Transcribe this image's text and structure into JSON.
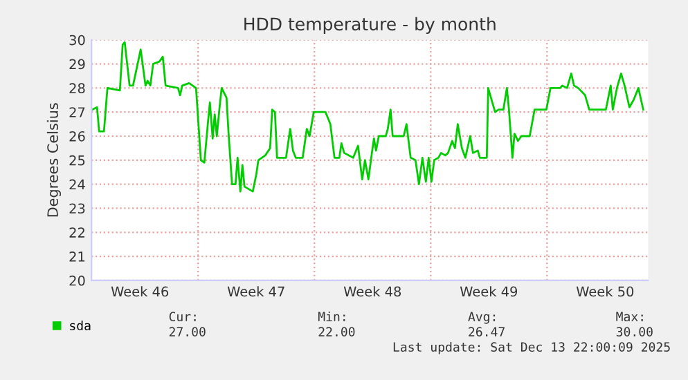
{
  "chart_data": {
    "type": "line",
    "title": "HDD temperature - by month",
    "ylabel": "Degrees Celsius",
    "xlim": [
      "2025-11-10T14:00",
      "2025-12-14T02:00"
    ],
    "ylim": [
      20,
      30
    ],
    "yticks": [
      20,
      21,
      22,
      23,
      24,
      25,
      26,
      27,
      28,
      29,
      30
    ],
    "xticks": [
      {
        "value": "2025-11-13T12:00",
        "label": "Week 46"
      },
      {
        "value": "2025-11-17T00:00",
        "label": null
      },
      {
        "value": "2025-11-20T12:00",
        "label": "Week 47"
      },
      {
        "value": "2025-11-24T00:00",
        "label": null
      },
      {
        "value": "2025-11-27T12:00",
        "label": "Week 48"
      },
      {
        "value": "2025-12-01T00:00",
        "label": null
      },
      {
        "value": "2025-12-04T12:00",
        "label": "Week 49"
      },
      {
        "value": "2025-12-08T00:00",
        "label": null
      },
      {
        "value": "2025-12-11T12:00",
        "label": "Week 50"
      }
    ],
    "grid": true,
    "legend": "bottom left",
    "marker": "none",
    "line_style": "solid",
    "series": [
      {
        "name": "sda",
        "color": "#00cc00",
        "x": [
          "2025-11-10T15:00",
          "2025-11-10T22:00",
          "2025-11-11T01:00",
          "2025-11-11T08:00",
          "2025-11-11T13:00",
          "2025-11-12T07:00",
          "2025-11-12T11:00",
          "2025-11-12T14:00",
          "2025-11-12T21:00",
          "2025-11-13T02:00",
          "2025-11-13T13:00",
          "2025-11-13T20:00",
          "2025-11-13T23:00",
          "2025-11-14T03:00",
          "2025-11-14T07:00",
          "2025-11-14T16:00",
          "2025-11-14T21:00",
          "2025-11-15T01:00",
          "2025-11-15T19:00",
          "2025-11-15T22:00",
          "2025-11-16T01:00",
          "2025-11-16T11:00",
          "2025-11-16T21:00",
          "2025-11-17T04:00",
          "2025-11-17T09:00",
          "2025-11-17T14:00",
          "2025-11-17T17:00",
          "2025-11-17T21:00",
          "2025-11-18T00:00",
          "2025-11-18T03:00",
          "2025-11-18T07:00",
          "2025-11-18T10:00",
          "2025-11-18T17:00",
          "2025-11-18T20:00",
          "2025-11-19T01:00",
          "2025-11-19T06:00",
          "2025-11-19T09:00",
          "2025-11-19T13:00",
          "2025-11-19T16:00",
          "2025-11-19T19:00",
          "2025-11-20T07:00",
          "2025-11-20T12:00",
          "2025-11-20T15:00",
          "2025-11-21T01:00",
          "2025-11-21T08:00",
          "2025-11-21T11:00",
          "2025-11-21T15:00",
          "2025-11-21T18:00",
          "2025-11-22T07:00",
          "2025-11-22T13:00",
          "2025-11-22T17:00",
          "2025-11-22T21:00",
          "2025-11-23T07:00",
          "2025-11-23T13:00",
          "2025-11-23T17:00",
          "2025-11-23T23:00",
          "2025-11-24T16:00",
          "2025-11-24T23:00",
          "2025-11-25T05:00",
          "2025-11-25T12:00",
          "2025-11-25T15:00",
          "2025-11-25T19:00",
          "2025-11-26T08:00",
          "2025-11-26T15:00",
          "2025-11-26T18:00",
          "2025-11-26T21:00",
          "2025-11-27T01:00",
          "2025-11-27T06:00",
          "2025-11-27T11:00",
          "2025-11-27T14:00",
          "2025-11-27T17:00",
          "2025-11-27T21:00",
          "2025-11-28T07:00",
          "2025-11-28T10:00",
          "2025-11-28T14:00",
          "2025-11-28T17:00",
          "2025-11-29T09:00",
          "2025-11-29T13:00",
          "2025-11-29T19:00",
          "2025-11-30T02:00",
          "2025-11-30T07:00",
          "2025-11-30T12:00",
          "2025-11-30T17:00",
          "2025-11-30T21:00",
          "2025-12-01T01:00",
          "2025-12-01T05:00",
          "2025-12-01T11:00",
          "2025-12-01T15:00",
          "2025-12-01T21:00",
          "2025-12-02T01:00",
          "2025-12-02T07:00",
          "2025-12-02T11:00",
          "2025-12-02T15:00",
          "2025-12-02T21:00",
          "2025-12-03T02:00",
          "2025-12-03T09:00",
          "2025-12-03T13:00",
          "2025-12-03T20:00",
          "2025-12-03T23:00",
          "2025-12-04T09:00",
          "2025-12-04T11:00",
          "2025-12-04T16:00",
          "2025-12-04T21:00",
          "2025-12-05T02:00",
          "2025-12-05T09:00",
          "2025-12-05T14:00",
          "2025-12-05T17:00",
          "2025-12-05T22:00",
          "2025-12-06T01:00",
          "2025-12-06T06:00",
          "2025-12-06T11:00",
          "2025-12-06T23:00",
          "2025-12-07T06:00",
          "2025-12-07T23:00",
          "2025-12-08T05:00",
          "2025-12-08T19:00",
          "2025-12-08T22:00",
          "2025-12-09T05:00",
          "2025-12-09T11:00",
          "2025-12-09T15:00",
          "2025-12-09T21:00",
          "2025-12-10T07:00",
          "2025-12-10T13:00",
          "2025-12-11T13:00",
          "2025-12-11T20:00",
          "2025-12-11T23:00",
          "2025-12-12T05:00",
          "2025-12-12T11:00",
          "2025-12-12T16:00",
          "2025-12-12T23:00",
          "2025-12-13T05:00",
          "2025-12-13T12:00",
          "2025-12-13T19:00"
        ],
        "values": [
          27.1,
          27.2,
          26.2,
          26.2,
          28.0,
          27.9,
          29.8,
          29.9,
          28.1,
          28.1,
          29.6,
          28.1,
          28.3,
          28.1,
          29.0,
          29.1,
          29.3,
          28.1,
          28.0,
          27.7,
          28.1,
          28.2,
          28.0,
          25.0,
          24.9,
          26.5,
          27.4,
          25.9,
          26.9,
          26.0,
          27.2,
          28.0,
          27.6,
          26.1,
          24.0,
          24.0,
          25.1,
          23.7,
          24.8,
          23.9,
          23.7,
          24.4,
          25.0,
          25.2,
          25.5,
          27.1,
          27.0,
          25.1,
          25.1,
          26.3,
          25.4,
          25.1,
          25.1,
          26.3,
          26.0,
          27.0,
          27.0,
          26.5,
          25.1,
          25.1,
          25.7,
          25.3,
          25.1,
          25.6,
          24.9,
          24.2,
          25.0,
          24.2,
          25.3,
          25.9,
          25.4,
          26.0,
          26.0,
          26.3,
          27.1,
          26.0,
          26.0,
          26.5,
          25.1,
          25.0,
          24.0,
          25.1,
          24.1,
          25.1,
          24.1,
          25.0,
          25.1,
          25.3,
          25.2,
          25.3,
          25.8,
          25.5,
          26.5,
          25.5,
          25.1,
          26.0,
          25.3,
          25.4,
          25.1,
          25.1,
          28.0,
          27.5,
          27.0,
          27.1,
          27.1,
          28.0,
          27.1,
          25.1,
          26.1,
          25.8,
          26.0,
          26.0,
          27.1,
          27.1,
          28.0,
          28.0,
          28.1,
          28.0,
          28.6,
          28.1,
          28.0,
          27.7,
          27.1,
          27.1,
          28.1,
          27.1,
          28.0,
          28.6,
          28.1,
          27.2,
          27.5,
          28.0,
          27.1
        ]
      }
    ],
    "annotations": [
      "Cur:",
      "Min:",
      "Avg:",
      "Max:",
      "27.00",
      "22.00",
      "26.47",
      "30.00",
      "Last update: Sat Dec 13 22:00:09 2025"
    ]
  }
}
